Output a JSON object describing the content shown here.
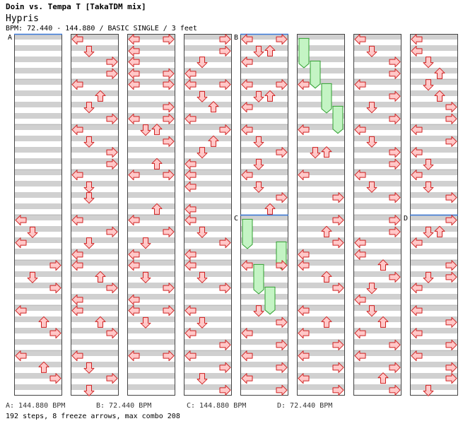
{
  "song": {
    "title": "Doin vs. Tempa T [TakaTDM mix]",
    "artist": "Hypris",
    "meta": "BPM: 72.440 - 144.880 / BASIC SINGLE / 3 feet"
  },
  "colors": {
    "stripe": "#d0d0d0",
    "bpm_line": "#3a78d8",
    "arrow_fill": "#ffc8c8",
    "arrow_stroke": "#d02020",
    "freeze_fill": "#c4f4c4",
    "freeze_stroke": "#30a030"
  },
  "stripes_per_measure": 4,
  "columns": 8,
  "measures_per_column": 8,
  "markers": [
    {
      "label": "A",
      "col": 0,
      "measure": 0
    },
    {
      "label": "B",
      "col": 4,
      "measure": 0
    },
    {
      "label": "C",
      "col": 4,
      "measure": 4
    },
    {
      "label": "D",
      "col": 7,
      "measure": 4
    }
  ],
  "notes": [
    [
      0,
      4,
      0.12,
      "left"
    ],
    [
      0,
      4,
      0.38,
      "down"
    ],
    [
      0,
      4,
      0.62,
      "left"
    ],
    [
      0,
      5,
      0.12,
      "right"
    ],
    [
      0,
      5,
      0.38,
      "down"
    ],
    [
      0,
      5,
      0.62,
      "right"
    ],
    [
      0,
      6,
      0.12,
      "left"
    ],
    [
      0,
      6,
      0.38,
      "up"
    ],
    [
      0,
      6,
      0.62,
      "right"
    ],
    [
      0,
      7,
      0.12,
      "left"
    ],
    [
      0,
      7,
      0.38,
      "up"
    ],
    [
      0,
      7,
      0.62,
      "right"
    ],
    [
      1,
      0,
      0.12,
      "left"
    ],
    [
      1,
      0,
      0.38,
      "down"
    ],
    [
      1,
      0,
      0.62,
      "right"
    ],
    [
      1,
      0,
      0.88,
      "right"
    ],
    [
      1,
      1,
      0.12,
      "left"
    ],
    [
      1,
      1,
      0.38,
      "up"
    ],
    [
      1,
      1,
      0.62,
      "down"
    ],
    [
      1,
      1,
      0.88,
      "right"
    ],
    [
      1,
      2,
      0.12,
      "left"
    ],
    [
      1,
      2,
      0.38,
      "down"
    ],
    [
      1,
      2,
      0.62,
      "right"
    ],
    [
      1,
      2,
      0.88,
      "right"
    ],
    [
      1,
      3,
      0.12,
      "left"
    ],
    [
      1,
      3,
      0.38,
      "down"
    ],
    [
      1,
      3,
      0.62,
      "down"
    ],
    [
      1,
      4,
      0.12,
      "left"
    ],
    [
      1,
      4,
      0.38,
      "right"
    ],
    [
      1,
      4,
      0.62,
      "down"
    ],
    [
      1,
      4,
      0.88,
      "left"
    ],
    [
      1,
      5,
      0.12,
      "left"
    ],
    [
      1,
      5,
      0.38,
      "up"
    ],
    [
      1,
      5,
      0.62,
      "right"
    ],
    [
      1,
      5,
      0.88,
      "left"
    ],
    [
      1,
      6,
      0.12,
      "left"
    ],
    [
      1,
      6,
      0.38,
      "up"
    ],
    [
      1,
      6,
      0.62,
      "right"
    ],
    [
      1,
      7,
      0.12,
      "left"
    ],
    [
      1,
      7,
      0.38,
      "down"
    ],
    [
      1,
      7,
      0.62,
      "right"
    ],
    [
      1,
      7,
      0.88,
      "down"
    ],
    [
      2,
      0,
      0.12,
      "left"
    ],
    [
      2,
      0,
      0.12,
      "right"
    ],
    [
      2,
      0,
      0.38,
      "left"
    ],
    [
      2,
      0,
      0.62,
      "left"
    ],
    [
      2,
      0,
      0.88,
      "right"
    ],
    [
      2,
      0,
      0.88,
      "left"
    ],
    [
      2,
      1,
      0.12,
      "left"
    ],
    [
      2,
      1,
      0.12,
      "right"
    ],
    [
      2,
      1,
      0.62,
      "right"
    ],
    [
      2,
      1,
      0.88,
      "left"
    ],
    [
      2,
      1,
      0.88,
      "right"
    ],
    [
      2,
      2,
      0.12,
      "down"
    ],
    [
      2,
      2,
      0.12,
      "up"
    ],
    [
      2,
      2,
      0.38,
      "right"
    ],
    [
      2,
      2,
      0.88,
      "up"
    ],
    [
      2,
      3,
      0.12,
      "left"
    ],
    [
      2,
      3,
      0.12,
      "right"
    ],
    [
      2,
      3,
      0.88,
      "up"
    ],
    [
      2,
      4,
      0.12,
      "left"
    ],
    [
      2,
      4,
      0.38,
      "right"
    ],
    [
      2,
      4,
      0.62,
      "down"
    ],
    [
      2,
      4,
      0.88,
      "left"
    ],
    [
      2,
      5,
      0.12,
      "left"
    ],
    [
      2,
      5,
      0.38,
      "down"
    ],
    [
      2,
      5,
      0.62,
      "right"
    ],
    [
      2,
      5,
      0.88,
      "left"
    ],
    [
      2,
      6,
      0.12,
      "left"
    ],
    [
      2,
      6,
      0.12,
      "right"
    ],
    [
      2,
      6,
      0.38,
      "down"
    ],
    [
      2,
      7,
      0.12,
      "left"
    ],
    [
      2,
      7,
      0.12,
      "right"
    ],
    [
      3,
      0,
      0.12,
      "right"
    ],
    [
      3,
      0,
      0.38,
      "right"
    ],
    [
      3,
      0,
      0.62,
      "down"
    ],
    [
      3,
      0,
      0.88,
      "left"
    ],
    [
      3,
      1,
      0.12,
      "left"
    ],
    [
      3,
      1,
      0.12,
      "right"
    ],
    [
      3,
      1,
      0.38,
      "down"
    ],
    [
      3,
      1,
      0.62,
      "up"
    ],
    [
      3,
      1,
      0.88,
      "left"
    ],
    [
      3,
      2,
      0.12,
      "right"
    ],
    [
      3,
      2,
      0.38,
      "up"
    ],
    [
      3,
      2,
      0.62,
      "down"
    ],
    [
      3,
      2,
      0.88,
      "left"
    ],
    [
      3,
      3,
      0.12,
      "left"
    ],
    [
      3,
      3,
      0.38,
      "left"
    ],
    [
      3,
      3,
      0.88,
      "left"
    ],
    [
      3,
      4,
      0.12,
      "left"
    ],
    [
      3,
      4,
      0.38,
      "down"
    ],
    [
      3,
      4,
      0.62,
      "right"
    ],
    [
      3,
      4,
      0.88,
      "left"
    ],
    [
      3,
      5,
      0.12,
      "left"
    ],
    [
      3,
      5,
      0.38,
      "down"
    ],
    [
      3,
      5,
      0.62,
      "right"
    ],
    [
      3,
      6,
      0.12,
      "left"
    ],
    [
      3,
      6,
      0.38,
      "down"
    ],
    [
      3,
      6,
      0.62,
      "left"
    ],
    [
      3,
      6,
      0.88,
      "right"
    ],
    [
      3,
      7,
      0.12,
      "left"
    ],
    [
      3,
      7,
      0.38,
      "right"
    ],
    [
      3,
      7,
      0.62,
      "down"
    ],
    [
      3,
      7,
      0.88,
      "right"
    ],
    [
      4,
      0,
      0.12,
      "left"
    ],
    [
      4,
      0,
      0.12,
      "right"
    ],
    [
      4,
      0,
      0.38,
      "down"
    ],
    [
      4,
      0,
      0.38,
      "up"
    ],
    [
      4,
      0,
      0.62,
      "left"
    ],
    [
      4,
      1,
      0.12,
      "left"
    ],
    [
      4,
      1,
      0.12,
      "right"
    ],
    [
      4,
      1,
      0.38,
      "down"
    ],
    [
      4,
      1,
      0.38,
      "up"
    ],
    [
      4,
      1,
      0.62,
      "left"
    ],
    [
      4,
      2,
      0.12,
      "left"
    ],
    [
      4,
      2,
      0.38,
      "down"
    ],
    [
      4,
      2,
      0.62,
      "right"
    ],
    [
      4,
      2,
      0.88,
      "down"
    ],
    [
      4,
      3,
      0.12,
      "left"
    ],
    [
      4,
      3,
      0.38,
      "down"
    ],
    [
      4,
      3,
      0.62,
      "right"
    ],
    [
      4,
      3,
      0.88,
      "up"
    ],
    [
      4,
      5,
      0.12,
      "left"
    ],
    [
      4,
      5,
      0.12,
      "right"
    ],
    [
      4,
      6,
      0.12,
      "down"
    ],
    [
      4,
      6,
      0.38,
      "right"
    ],
    [
      4,
      6,
      0.62,
      "left"
    ],
    [
      4,
      6,
      0.88,
      "right"
    ],
    [
      4,
      7,
      0.12,
      "left"
    ],
    [
      4,
      7,
      0.38,
      "right"
    ],
    [
      4,
      7,
      0.62,
      "left"
    ],
    [
      4,
      7,
      0.88,
      "right"
    ],
    [
      5,
      1,
      0.12,
      "left"
    ],
    [
      5,
      2,
      0.12,
      "left"
    ],
    [
      5,
      2,
      0.62,
      "down"
    ],
    [
      5,
      2,
      0.62,
      "up"
    ],
    [
      5,
      3,
      0.12,
      "left"
    ],
    [
      5,
      3,
      0.62,
      "right"
    ],
    [
      5,
      4,
      0.12,
      "right"
    ],
    [
      5,
      4,
      0.38,
      "up"
    ],
    [
      5,
      4,
      0.62,
      "right"
    ],
    [
      5,
      4,
      0.88,
      "left"
    ],
    [
      5,
      5,
      0.12,
      "left"
    ],
    [
      5,
      5,
      0.38,
      "up"
    ],
    [
      5,
      5,
      0.62,
      "right"
    ],
    [
      5,
      6,
      0.12,
      "left"
    ],
    [
      5,
      6,
      0.38,
      "up"
    ],
    [
      5,
      6,
      0.62,
      "left"
    ],
    [
      5,
      6,
      0.88,
      "right"
    ],
    [
      5,
      7,
      0.12,
      "left"
    ],
    [
      5,
      7,
      0.38,
      "right"
    ],
    [
      5,
      7,
      0.62,
      "left"
    ],
    [
      5,
      7,
      0.88,
      "right"
    ],
    [
      6,
      0,
      0.12,
      "left"
    ],
    [
      6,
      0,
      0.38,
      "down"
    ],
    [
      6,
      0,
      0.62,
      "right"
    ],
    [
      6,
      0,
      0.88,
      "right"
    ],
    [
      6,
      1,
      0.12,
      "left"
    ],
    [
      6,
      1,
      0.38,
      "right"
    ],
    [
      6,
      1,
      0.62,
      "down"
    ],
    [
      6,
      1,
      0.88,
      "right"
    ],
    [
      6,
      2,
      0.12,
      "left"
    ],
    [
      6,
      2,
      0.38,
      "down"
    ],
    [
      6,
      2,
      0.62,
      "right"
    ],
    [
      6,
      2,
      0.88,
      "right"
    ],
    [
      6,
      3,
      0.12,
      "left"
    ],
    [
      6,
      3,
      0.38,
      "down"
    ],
    [
      6,
      3,
      0.62,
      "right"
    ],
    [
      6,
      4,
      0.12,
      "right"
    ],
    [
      6,
      4,
      0.38,
      "right"
    ],
    [
      6,
      4,
      0.62,
      "left"
    ],
    [
      6,
      4,
      0.88,
      "left"
    ],
    [
      6,
      5,
      0.12,
      "up"
    ],
    [
      6,
      5,
      0.38,
      "right"
    ],
    [
      6,
      5,
      0.62,
      "down"
    ],
    [
      6,
      5,
      0.88,
      "left"
    ],
    [
      6,
      6,
      0.12,
      "down"
    ],
    [
      6,
      6,
      0.38,
      "up"
    ],
    [
      6,
      6,
      0.62,
      "left"
    ],
    [
      6,
      6,
      0.88,
      "right"
    ],
    [
      6,
      7,
      0.12,
      "left"
    ],
    [
      6,
      7,
      0.38,
      "right"
    ],
    [
      6,
      7,
      0.62,
      "up"
    ],
    [
      6,
      7,
      0.88,
      "right"
    ],
    [
      7,
      0,
      0.12,
      "left"
    ],
    [
      7,
      0,
      0.38,
      "left"
    ],
    [
      7,
      0,
      0.62,
      "down"
    ],
    [
      7,
      0,
      0.88,
      "up"
    ],
    [
      7,
      1,
      0.12,
      "down"
    ],
    [
      7,
      1,
      0.38,
      "up"
    ],
    [
      7,
      1,
      0.62,
      "right"
    ],
    [
      7,
      1,
      0.88,
      "right"
    ],
    [
      7,
      2,
      0.12,
      "left"
    ],
    [
      7,
      2,
      0.38,
      "right"
    ],
    [
      7,
      2,
      0.62,
      "left"
    ],
    [
      7,
      2,
      0.88,
      "down"
    ],
    [
      7,
      3,
      0.12,
      "left"
    ],
    [
      7,
      3,
      0.38,
      "down"
    ],
    [
      7,
      3,
      0.62,
      "right"
    ],
    [
      7,
      4,
      0.12,
      "right"
    ],
    [
      7,
      4,
      0.38,
      "down"
    ],
    [
      7,
      4,
      0.38,
      "up"
    ],
    [
      7,
      4,
      0.62,
      "left"
    ],
    [
      7,
      5,
      0.12,
      "right"
    ],
    [
      7,
      5,
      0.38,
      "down"
    ],
    [
      7,
      5,
      0.38,
      "right"
    ],
    [
      7,
      5,
      0.62,
      "left"
    ],
    [
      7,
      6,
      0.12,
      "left"
    ],
    [
      7,
      6,
      0.38,
      "right"
    ],
    [
      7,
      6,
      0.62,
      "left"
    ],
    [
      7,
      6,
      0.88,
      "right"
    ],
    [
      7,
      7,
      0.12,
      "left"
    ],
    [
      7,
      7,
      0.38,
      "right"
    ],
    [
      7,
      7,
      0.62,
      "right"
    ],
    [
      7,
      7,
      0.88,
      "down"
    ]
  ],
  "freezes": [
    [
      5,
      "left",
      0,
      0.1,
      0,
      0.75
    ],
    [
      5,
      "down",
      0,
      0.6,
      1,
      0.2
    ],
    [
      5,
      "up",
      1,
      0.1,
      1,
      0.75
    ],
    [
      5,
      "right",
      1,
      0.6,
      2,
      0.2
    ],
    [
      4,
      "left",
      4,
      0.1,
      4,
      0.75
    ],
    [
      4,
      "right",
      4,
      0.6,
      5,
      0.2
    ],
    [
      4,
      "down",
      5,
      0.1,
      5,
      0.75
    ],
    [
      4,
      "up",
      5,
      0.6,
      6,
      0.2
    ]
  ],
  "legend": {
    "a": "A: 144.880 BPM",
    "b": "B: 72.440 BPM",
    "c": "C: 144.880 BPM",
    "d": "D: 72.440 BPM"
  },
  "summary": "192 steps, 8 freeze arrows, max combo 208"
}
